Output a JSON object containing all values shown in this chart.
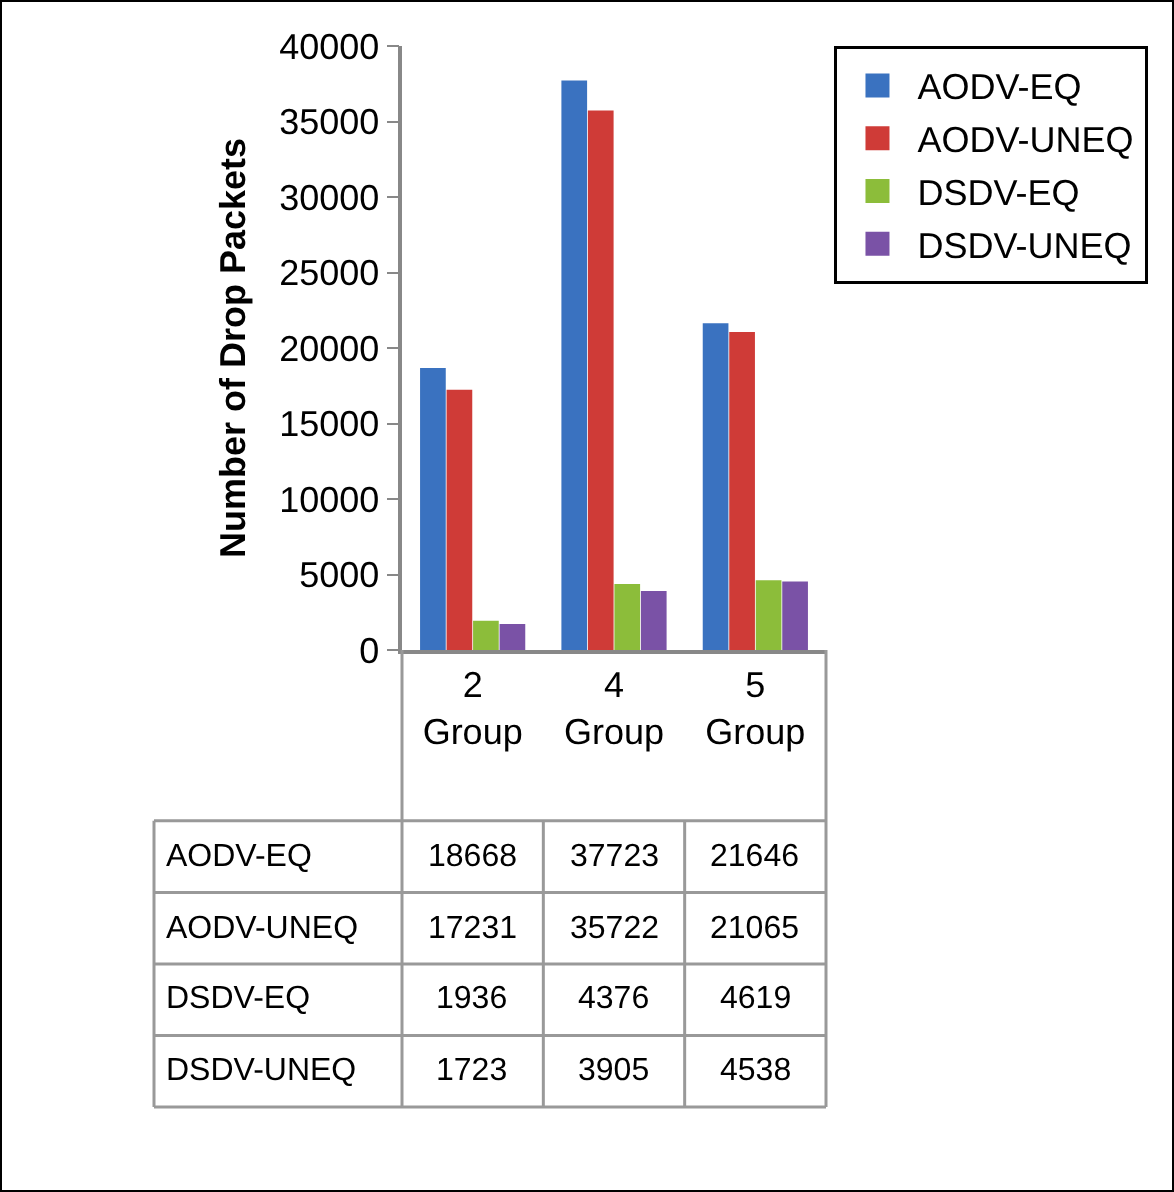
{
  "chart_data": {
    "type": "bar",
    "ylabel": "Number of Drop Packets",
    "categories": [
      "2 Group",
      "4 Group",
      "5 Group"
    ],
    "series": [
      {
        "name": "AODV-EQ",
        "color": "#3a72c0",
        "values": [
          18668,
          37723,
          21646
        ]
      },
      {
        "name": "AODV-UNEQ",
        "color": "#cf3b37",
        "values": [
          17231,
          35722,
          21065
        ]
      },
      {
        "name": "DSDV-EQ",
        "color": "#8cbd3a",
        "values": [
          1936,
          4376,
          4619
        ]
      },
      {
        "name": "DSDV-UNEQ",
        "color": "#7a52a6",
        "values": [
          1723,
          3905,
          4538
        ]
      }
    ],
    "ylim": [
      0,
      40000
    ],
    "yticks": [
      0,
      5000,
      10000,
      15000,
      20000,
      25000,
      30000,
      35000,
      40000
    ],
    "grid": false,
    "legend": "top right",
    "data_labels": true
  }
}
